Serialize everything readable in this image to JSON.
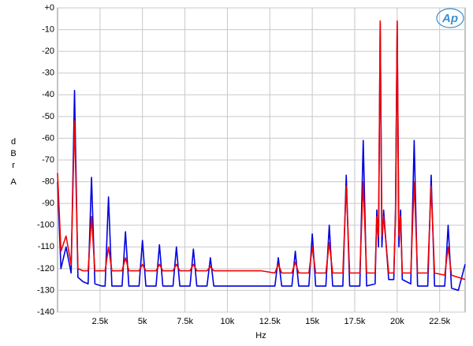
{
  "chart_data": {
    "type": "line",
    "x_label": "Hz",
    "y_label": "dBr",
    "y_unit": "A",
    "logo": "Ap",
    "x": [
      0,
      200,
      500,
      800,
      1000,
      1200,
      1500,
      1800,
      2000,
      2200,
      2600,
      2800,
      3000,
      3200,
      3600,
      3800,
      4000,
      4200,
      4800,
      5000,
      5200,
      5800,
      6000,
      6200,
      6800,
      7000,
      7200,
      7800,
      8000,
      8200,
      8800,
      9000,
      9200,
      10000,
      11000,
      12000,
      12800,
      13000,
      13200,
      13800,
      14000,
      14200,
      14800,
      15000,
      15200,
      15800,
      16000,
      16200,
      16800,
      17000,
      17200,
      17800,
      18000,
      18200,
      18700,
      18800,
      18900,
      19000,
      19100,
      19200,
      19500,
      19800,
      19900,
      20000,
      20100,
      20200,
      20300,
      20800,
      21000,
      21200,
      21800,
      22000,
      22200,
      22800,
      23000,
      23200,
      23600,
      24000
    ],
    "series": [
      {
        "color": "#0000e0",
        "values": [
          -80,
          -120,
          -110,
          -122,
          -38,
          -124,
          -126,
          -127,
          -78,
          -127,
          -128,
          -128,
          -87,
          -128,
          -128,
          -128,
          -103,
          -128,
          -128,
          -107,
          -128,
          -128,
          -109,
          -128,
          -128,
          -110,
          -128,
          -128,
          -111,
          -128,
          -128,
          -115,
          -128,
          -128,
          -128,
          -128,
          -128,
          -115,
          -128,
          -128,
          -112,
          -128,
          -128,
          -104,
          -128,
          -128,
          -100,
          -128,
          -128,
          -77,
          -128,
          -128,
          -61,
          -128,
          -127,
          -93,
          -110,
          -7,
          -110,
          -93,
          -125,
          -125,
          -93,
          -7,
          -110,
          -93,
          -125,
          -127,
          -61,
          -128,
          -128,
          -77,
          -128,
          -128,
          -100,
          -129,
          -130,
          -118
        ]
      },
      {
        "color": "#f00000",
        "values": [
          -76,
          -112,
          -105,
          -118,
          -52,
          -120,
          -121,
          -121,
          -96,
          -121,
          -121,
          -121,
          -110,
          -121,
          -121,
          -121,
          -115,
          -121,
          -121,
          -118,
          -121,
          -121,
          -118,
          -121,
          -121,
          -118,
          -121,
          -121,
          -118,
          -121,
          -121,
          -119,
          -121,
          -121,
          -121,
          -121,
          -122,
          -118,
          -122,
          -122,
          -117,
          -122,
          -122,
          -110,
          -122,
          -122,
          -108,
          -122,
          -122,
          -82,
          -122,
          -122,
          -80,
          -122,
          -122,
          -96,
          -105,
          -6,
          -105,
          -96,
          -122,
          -122,
          -96,
          -6,
          -105,
          -96,
          -122,
          -122,
          -80,
          -122,
          -122,
          -82,
          -122,
          -123,
          -110,
          -123,
          -124,
          -125
        ]
      }
    ],
    "xlim": [
      0,
      24000
    ],
    "xticks": [
      {
        "value": 2500,
        "label": "2.5k"
      },
      {
        "value": 5000,
        "label": "5k"
      },
      {
        "value": 7500,
        "label": "7.5k"
      },
      {
        "value": 10000,
        "label": "10k"
      },
      {
        "value": 12500,
        "label": "12.5k"
      },
      {
        "value": 15000,
        "label": "15k"
      },
      {
        "value": 17500,
        "label": "17.5k"
      },
      {
        "value": 20000,
        "label": "20k"
      },
      {
        "value": 22500,
        "label": "22.5k"
      }
    ],
    "ylim": [
      -140,
      0
    ],
    "yticks": [
      {
        "value": 0,
        "label": "+0"
      },
      -10,
      -20,
      -30,
      -40,
      -50,
      -60,
      -70,
      -80,
      -90,
      -100,
      -110,
      -120,
      -130,
      -140
    ],
    "grid": true
  }
}
